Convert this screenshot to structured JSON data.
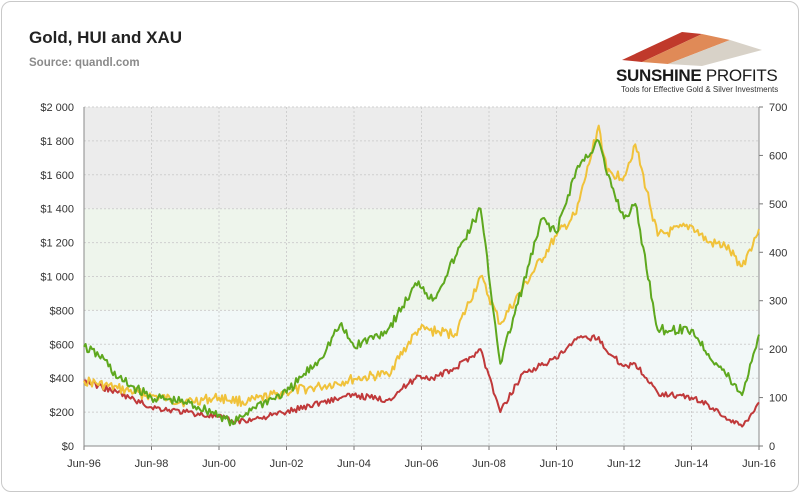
{
  "header": {
    "title": "Gold, HUI and XAU",
    "source": "Source: quandl.com"
  },
  "logo": {
    "name_part1": "SUNSHINE",
    "name_part2": "PROFITS",
    "tagline": "Tools for Effective Gold & Silver Investments"
  },
  "colors": {
    "gold": "#f0c23a",
    "hui": "#5ea81e",
    "xau": "#c0393a",
    "band_top": "#ececec",
    "band_mid": "#eef5ec",
    "band_low": "#f2f8f8"
  },
  "chart_data": {
    "type": "line",
    "title": "Gold, HUI and XAU",
    "x_tick_labels": [
      "Jun-96",
      "Jun-98",
      "Jun-00",
      "Jun-02",
      "Jun-04",
      "Jun-06",
      "Jun-08",
      "Jun-10",
      "Jun-12",
      "Jun-14",
      "Jun-16"
    ],
    "left_axis": {
      "ylim": [
        0,
        2000
      ],
      "tick_labels": [
        "$0",
        "$200",
        "$400",
        "$600",
        "$800",
        "$1 000",
        "$1 200",
        "$1 400",
        "$1 600",
        "$1 800",
        "$2 000"
      ]
    },
    "right_axis": {
      "ylim": [
        0,
        700
      ],
      "tick_labels": [
        "0",
        "100",
        "200",
        "300",
        "400",
        "500",
        "600",
        "700"
      ]
    },
    "grid": true,
    "series": [
      {
        "axis": "left",
        "x": [
          "1996-06",
          "1997-06",
          "1998-06",
          "1999-06",
          "2000-06",
          "2001-04",
          "2002-06",
          "2003-06",
          "2004-06",
          "2005-06",
          "2006-05",
          "2007-06",
          "2008-03",
          "2008-10",
          "2009-06",
          "2010-06",
          "2011-01",
          "2011-09",
          "2011-12",
          "2012-06",
          "2012-10",
          "2013-06",
          "2014-06",
          "2014-12",
          "2015-06",
          "2015-12",
          "2016-06"
        ],
        "values": [
          385,
          340,
          295,
          260,
          285,
          258,
          320,
          350,
          395,
          425,
          690,
          660,
          1000,
          720,
          930,
          1240,
          1370,
          1890,
          1610,
          1590,
          1780,
          1240,
          1300,
          1200,
          1180,
          1060,
          1280
        ]
      },
      {
        "axis": "right",
        "x": [
          "1996-06",
          "1997-01",
          "1997-06",
          "1998-06",
          "1999-06",
          "2000-06",
          "2000-11",
          "2001-06",
          "2002-06",
          "2003-06",
          "2004-01",
          "2004-06",
          "2005-06",
          "2006-05",
          "2006-10",
          "2007-06",
          "2008-03",
          "2008-10",
          "2009-06",
          "2010-01",
          "2010-06",
          "2011-01",
          "2011-09",
          "2011-12",
          "2012-06",
          "2012-10",
          "2013-06",
          "2014-06",
          "2014-12",
          "2015-06",
          "2015-12",
          "2016-04",
          "2016-06"
        ],
        "values": [
          205,
          180,
          140,
          100,
          90,
          65,
          45,
          80,
          110,
          180,
          250,
          205,
          240,
          340,
          300,
          390,
          490,
          170,
          330,
          470,
          440,
          570,
          630,
          560,
          470,
          500,
          240,
          240,
          190,
          150,
          105,
          190,
          230
        ]
      },
      {
        "axis": "right",
        "x": [
          "1996-06",
          "1997-06",
          "1998-06",
          "1999-06",
          "2000-06",
          "2000-11",
          "2001-06",
          "2002-06",
          "2003-06",
          "2004-06",
          "2005-06",
          "2006-05",
          "2006-10",
          "2007-06",
          "2008-03",
          "2008-10",
          "2009-06",
          "2010-06",
          "2011-01",
          "2011-09",
          "2011-12",
          "2012-06",
          "2012-10",
          "2013-06",
          "2014-06",
          "2014-12",
          "2015-06",
          "2015-12",
          "2016-06"
        ],
        "values": [
          135,
          110,
          80,
          70,
          60,
          50,
          55,
          70,
          90,
          105,
          95,
          145,
          140,
          160,
          200,
          70,
          150,
          180,
          220,
          225,
          195,
          165,
          170,
          110,
          100,
          85,
          60,
          40,
          90
        ]
      }
    ]
  }
}
